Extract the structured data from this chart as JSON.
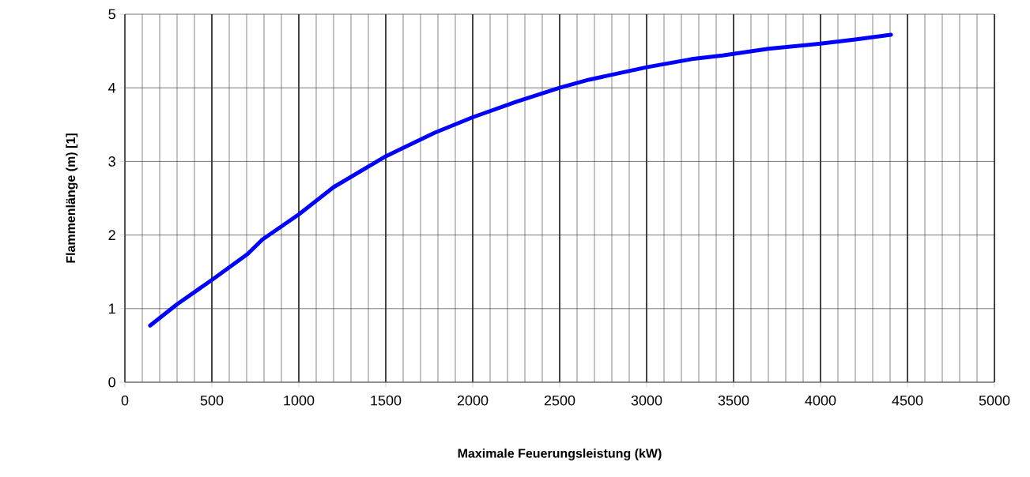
{
  "chart_data": {
    "type": "line",
    "xlabel": "Maximale Feuerungsleistung (kW)",
    "ylabel": "Flammenlänge (m) [1]",
    "x": [
      145,
      300,
      500,
      705,
      791,
      1000,
      1200,
      1500,
      1782,
      2000,
      2250,
      2500,
      2668,
      3000,
      3259,
      3436,
      3700,
      4000,
      4209,
      4405
    ],
    "series": [
      {
        "color": "#0000ff",
        "values": [
          0.77,
          1.06,
          1.39,
          1.74,
          1.94,
          2.28,
          2.65,
          3.07,
          3.39,
          3.6,
          3.81,
          4.0,
          4.11,
          4.28,
          4.39,
          4.44,
          4.53,
          4.6,
          4.66,
          4.72
        ]
      }
    ],
    "xlim": [
      0,
      5000
    ],
    "ylim": [
      0,
      5
    ],
    "xticks": [
      0,
      500,
      1000,
      1500,
      2000,
      2500,
      3000,
      3500,
      4000,
      4500,
      5000
    ],
    "yticks": [
      0,
      1,
      2,
      3,
      4,
      5
    ],
    "grid": true,
    "marker": "none",
    "line_style": "solid"
  }
}
